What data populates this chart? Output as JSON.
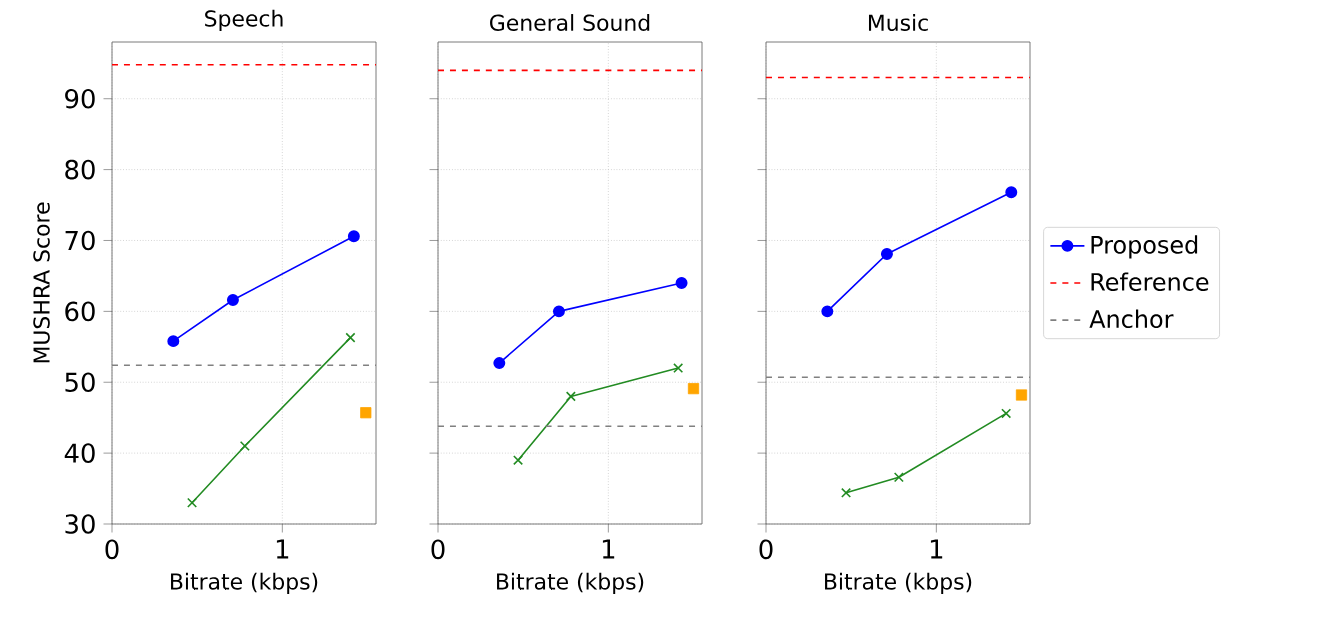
{
  "chart_data": [
    {
      "type": "line",
      "title": "Speech",
      "xlabel": "Bitrate (kbps)",
      "ylabel": "MUSHRA Score",
      "xlim": [
        0,
        1.55
      ],
      "ylim": [
        30,
        98
      ],
      "xticks": [
        0,
        1
      ],
      "yticks": [
        30,
        40,
        50,
        60,
        70,
        80,
        90
      ],
      "grid": true,
      "series": [
        {
          "color": "#0000ff",
          "marker": "circle",
          "x": [
            0.36,
            0.71,
            1.42
          ],
          "values": [
            55.8,
            61.6,
            70.6
          ]
        },
        {
          "color": "#228b22",
          "marker": "cross",
          "x": [
            0.47,
            0.78,
            1.4
          ],
          "values": [
            33,
            41,
            56.3
          ]
        },
        {
          "color": "#ffa500",
          "marker": "square",
          "type": "scatter",
          "x": [
            1.49
          ],
          "values": [
            45.7
          ]
        }
      ],
      "ref_lines": [
        {
          "axis": "y",
          "value": 94.8,
          "color": "#ff0000",
          "line_style": "dashed"
        },
        {
          "axis": "y",
          "value": 52.4,
          "color": "#808080",
          "line_style": "dashed"
        }
      ]
    },
    {
      "type": "line",
      "title": "General Sound",
      "xlabel": "Bitrate (kbps)",
      "xlim": [
        0,
        1.55
      ],
      "ylim": [
        30,
        98
      ],
      "xticks": [
        0,
        1
      ],
      "yticks": [
        30,
        40,
        50,
        60,
        70,
        80,
        90
      ],
      "grid": true,
      "tick_labels": "x",
      "series": [
        {
          "color": "#0000ff",
          "marker": "circle",
          "x": [
            0.36,
            0.71,
            1.43
          ],
          "values": [
            52.7,
            60,
            64
          ]
        },
        {
          "color": "#228b22",
          "marker": "cross",
          "x": [
            0.47,
            0.78,
            1.41
          ],
          "values": [
            39,
            48,
            52
          ]
        },
        {
          "color": "#ffa500",
          "marker": "square",
          "type": "scatter",
          "x": [
            1.5
          ],
          "values": [
            49.1
          ]
        }
      ],
      "ref_lines": [
        {
          "axis": "y",
          "value": 94,
          "color": "#ff0000",
          "line_style": "dashed"
        },
        {
          "axis": "y",
          "value": 43.8,
          "color": "#808080",
          "line_style": "dashed"
        }
      ]
    },
    {
      "type": "line",
      "title": "Music",
      "xlabel": "Bitrate (kbps)",
      "xlim": [
        0,
        1.55
      ],
      "ylim": [
        30,
        98
      ],
      "xticks": [
        0,
        1
      ],
      "yticks": [
        30,
        40,
        50,
        60,
        70,
        80,
        90
      ],
      "grid": true,
      "tick_labels": "x",
      "legend": "right",
      "series": [
        {
          "name": "Proposed",
          "color": "#0000ff",
          "marker": "circle",
          "x": [
            0.36,
            0.71,
            1.44
          ],
          "values": [
            60,
            68.1,
            76.8
          ]
        },
        {
          "color": "#228b22",
          "marker": "cross",
          "x": [
            0.47,
            0.78,
            1.41
          ],
          "values": [
            34.4,
            36.6,
            45.6
          ]
        },
        {
          "color": "#ffa500",
          "marker": "square",
          "type": "scatter",
          "x": [
            1.5
          ],
          "values": [
            48.2
          ]
        }
      ],
      "ref_lines": [
        {
          "axis": "y",
          "value": 93,
          "label": "Reference",
          "color": "#ff0000",
          "line_style": "dashed"
        },
        {
          "axis": "y",
          "value": 50.7,
          "label": "Anchor",
          "color": "#808080",
          "line_style": "dashed"
        }
      ]
    }
  ]
}
